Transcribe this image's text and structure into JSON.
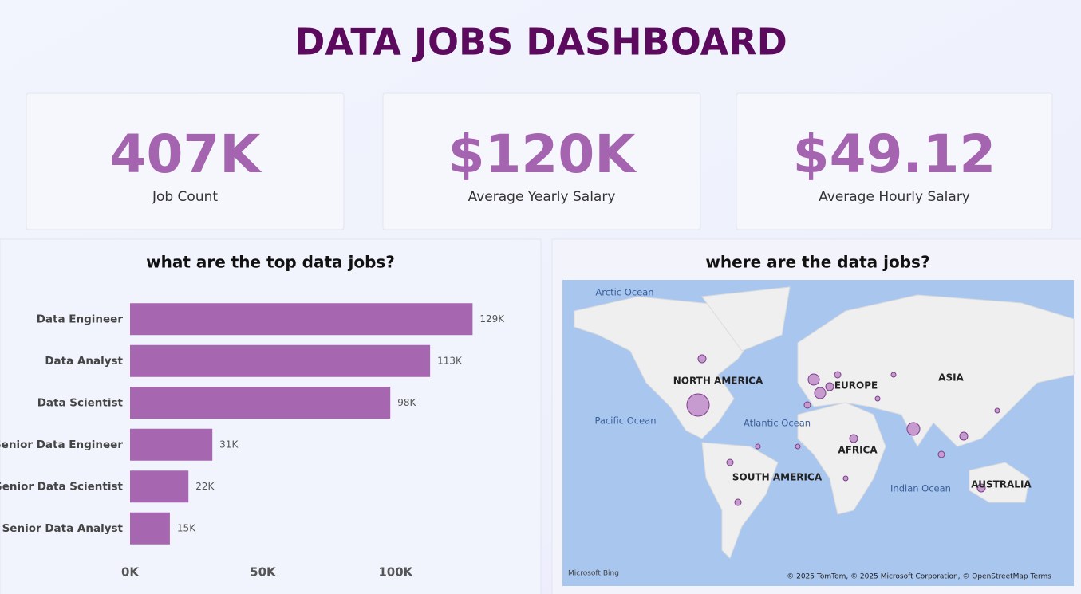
{
  "title": "DATA JOBS DASHBOARD",
  "kpis": [
    {
      "value": "407K",
      "label": "Job Count"
    },
    {
      "value": "$120K",
      "label": "Average Yearly Salary"
    },
    {
      "value": "$49.12",
      "label": "Average Hourly Salary"
    }
  ],
  "chart_data": [
    {
      "type": "bar",
      "orientation": "horizontal",
      "title": "what are the top data jobs?",
      "categories": [
        "Data Engineer",
        "Data Analyst",
        "Data Scientist",
        "Senior Data Engineer",
        "Senior Data Scientist",
        "Senior Data Analyst"
      ],
      "values": [
        129000,
        113000,
        98000,
        31000,
        22000,
        15000
      ],
      "value_labels": [
        "129K",
        "113K",
        "98K",
        "31K",
        "22K",
        "15K"
      ],
      "color": "#a666b0",
      "xlim": [
        0,
        140000
      ],
      "xticks": [
        {
          "value": 0,
          "label": "0K"
        },
        {
          "value": 50000,
          "label": "50K"
        },
        {
          "value": 100000,
          "label": "100K"
        }
      ],
      "grid": false
    },
    {
      "type": "map",
      "title": "where are the data jobs?",
      "labels": [
        "Arctic Ocean",
        "NORTH AMERICA",
        "Pacific Ocean",
        "Atlantic Ocean",
        "EUROPE",
        "ASIA",
        "AFRICA",
        "SOUTH AMERICA",
        "Indian Ocean",
        "AUSTRALIA"
      ],
      "provider": "Microsoft Bing",
      "attribution": "© 2025 TomTom, © 2025 Microsoft Corporation, © OpenStreetMap  Terms"
    }
  ]
}
